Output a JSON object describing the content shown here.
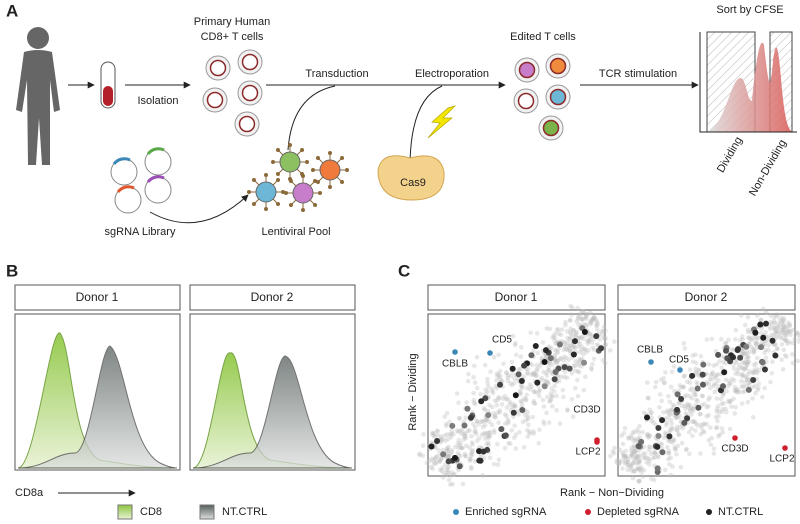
{
  "panel_a": {
    "label": "A",
    "cells_title": [
      "Primary Human",
      "CD8+ T cells"
    ],
    "isolation": "Isolation",
    "transduction": "Transduction",
    "electroporation": "Electroporation",
    "edited_title": "Edited T cells",
    "tcr_stimulation": "TCR stimulation",
    "sort_title": "Sort by CFSE",
    "dividing": "Dividing",
    "non_dividing": "Non-Dividing",
    "sgrna_library": "sgRNA Library",
    "lentiviral_pool": "Lentiviral Pool",
    "cas9": "Cas9"
  },
  "panel_b": {
    "label": "B",
    "panels": [
      "Donor 1",
      "Donor 2"
    ],
    "x_label": "CD8a",
    "legend": [
      "CD8",
      "NT.CTRL"
    ]
  },
  "panel_c": {
    "label": "C",
    "panels": [
      "Donor 1",
      "Donor 2"
    ],
    "y_label": "Rank − Dividing",
    "x_label": "Rank − Non−Dividing",
    "donor1_points": [
      "CBLB",
      "CD5",
      "CD3D",
      "LCP2"
    ],
    "donor2_points": [
      "CBLB",
      "CD5",
      "CD3D",
      "LCP2"
    ],
    "legend": [
      "Enriched sgRNA",
      "Depleted sgRNA",
      "NT.CTRL"
    ]
  }
}
